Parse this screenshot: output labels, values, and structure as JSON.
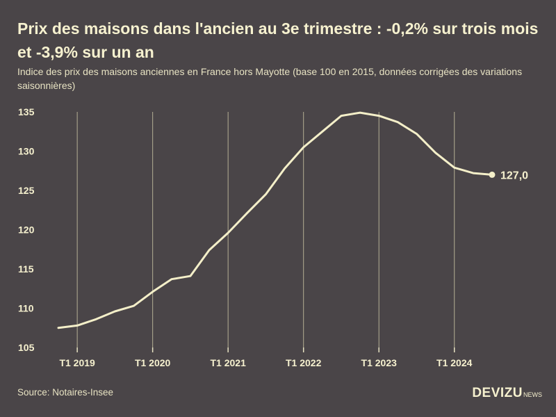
{
  "title": "Prix des maisons dans l'ancien au 3e trimestre : -0,2% sur trois mois et -3,9% sur un an",
  "subtitle": "Indice des prix des maisons anciennes en France hors Mayotte (base 100 en 2015, données corrigées des variations saisonnières)",
  "source": "Source: Notaires-Insee",
  "brand": {
    "main": "DEVIZU",
    "sub": "NEWS"
  },
  "colors": {
    "background": "#4a4548",
    "line": "#f4efc9",
    "text": "#f6f1cf"
  },
  "chart_data": {
    "type": "line",
    "title": "Prix des maisons dans l'ancien au 3e trimestre : -0,2% sur trois mois et -3,9% sur un an",
    "xlabel": "",
    "ylabel": "",
    "ylim": [
      105,
      135
    ],
    "yticks": [
      105,
      110,
      115,
      120,
      125,
      130,
      135
    ],
    "xticks": [
      "T1 2019",
      "T1 2020",
      "T1 2021",
      "T1 2022",
      "T1 2023",
      "T1 2024"
    ],
    "x_tick_positions": [
      1,
      5,
      9,
      13,
      17,
      21
    ],
    "grid": "vertical lines at T1 of each year",
    "legend": "none",
    "series": [
      {
        "x": [
          "T4 2018",
          "T1 2019",
          "T2 2019",
          "T3 2019",
          "T4 2019",
          "T1 2020",
          "T2 2020",
          "T3 2020",
          "T4 2020",
          "T1 2021",
          "T2 2021",
          "T3 2021",
          "T4 2021",
          "T1 2022",
          "T2 2022",
          "T3 2022",
          "T4 2022",
          "T1 2023",
          "T2 2023",
          "T3 2023",
          "T4 2023",
          "T1 2024",
          "T2 2024",
          "T3 2024"
        ],
        "values": [
          107.5,
          107.8,
          108.6,
          109.6,
          110.3,
          112.1,
          113.7,
          114.1,
          117.4,
          119.6,
          122.1,
          124.5,
          127.8,
          130.5,
          132.5,
          134.5,
          134.9,
          134.5,
          133.7,
          132.2,
          129.8,
          127.9,
          127.2,
          127.0
        ]
      }
    ],
    "end_label": "127,0"
  }
}
